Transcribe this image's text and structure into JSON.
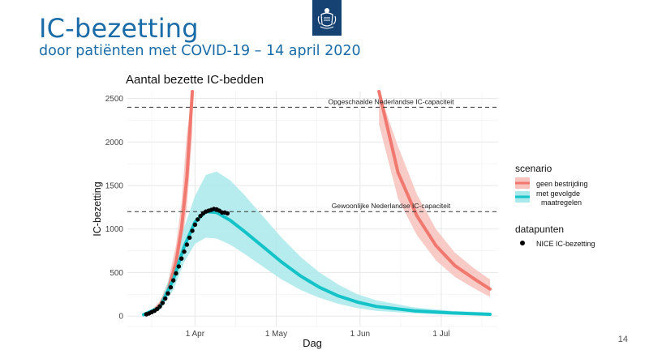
{
  "slide": {
    "title": "IC-bezetting",
    "subtitle": "door patiënten met COVID-19 – 14 april 2020",
    "page_number": "14"
  },
  "colors": {
    "title_blue": "#1a6ca8",
    "logo_blue": "#154273",
    "red_line": "#f0786e",
    "red_band": "#f8c2bd",
    "teal_line": "#14c3c8",
    "teal_band": "#a9e9eb",
    "grid": "#e6e6e6"
  },
  "chart_data": {
    "type": "line",
    "title": "Aantal bezette IC-bedden",
    "xlabel": "Dag",
    "ylabel": "IC-bezetting",
    "xlim": [
      "2020-03-07",
      "2020-07-22"
    ],
    "ylim": [
      -120,
      2580
    ],
    "x_ticks": [
      {
        "date": "2020-04-01",
        "label": "1 Apr"
      },
      {
        "date": "2020-05-01",
        "label": "1 May"
      },
      {
        "date": "2020-06-01",
        "label": "1 Jun"
      },
      {
        "date": "2020-07-01",
        "label": "1 Jul"
      }
    ],
    "y_ticks": [
      0,
      500,
      1000,
      1500,
      2000,
      2500
    ],
    "grid": true,
    "reference_lines": [
      {
        "y": 2400,
        "label": "Opgeschaalde Nederlandse IC-capaciteit"
      },
      {
        "y": 1200,
        "label": "Gewoonlijke Nederlandse IC-capaciteit"
      }
    ],
    "legend": {
      "position": "right",
      "scenario_title": "scenario",
      "datapunten_title": "datapunten",
      "items": [
        {
          "label": "geen bestrijding",
          "color": "#f0786e"
        },
        {
          "label": "met gevolgde maatregelen",
          "line1": "met gevolgde",
          "line2": "maatregelen",
          "color": "#14c3c8"
        },
        {
          "label": "NICE IC-bezetting",
          "color": "#000000"
        }
      ]
    },
    "series": [
      {
        "name": "geen bestrijding",
        "segments": [
          {
            "x": [
              "2020-03-13",
              "2020-03-16",
              "2020-03-19",
              "2020-03-22",
              "2020-03-25",
              "2020-03-27",
              "2020-03-29",
              "2020-03-31"
            ],
            "y": [
              15,
              45,
              120,
              290,
              620,
              1000,
              1600,
              2580
            ],
            "lower": [
              10,
              30,
              80,
              210,
              470,
              780,
              1250,
              2100
            ],
            "upper": [
              22,
              70,
              170,
              390,
              820,
              1300,
              2100,
              2580
            ]
          },
          {
            "x": [
              "2020-06-08",
              "2020-06-15",
              "2020-06-22",
              "2020-06-29",
              "2020-07-06",
              "2020-07-13",
              "2020-07-19"
            ],
            "y": [
              2580,
              1650,
              1150,
              810,
              580,
              430,
              310
            ],
            "lower": [
              2200,
              1350,
              930,
              640,
              450,
              320,
              220
            ],
            "upper": [
              2580,
              1950,
              1400,
              1000,
              730,
              550,
              420
            ]
          }
        ]
      },
      {
        "name": "met gevolgde maatregelen",
        "x": [
          "2020-03-13",
          "2020-03-19",
          "2020-03-24",
          "2020-03-28",
          "2020-04-01",
          "2020-04-05",
          "2020-04-09",
          "2020-04-14",
          "2020-04-19",
          "2020-04-26",
          "2020-05-03",
          "2020-05-10",
          "2020-05-17",
          "2020-05-24",
          "2020-05-31",
          "2020-06-07",
          "2020-06-21",
          "2020-07-05",
          "2020-07-19"
        ],
        "y": [
          15,
          100,
          420,
          800,
          1080,
          1200,
          1190,
          1100,
          980,
          800,
          620,
          460,
          330,
          230,
          160,
          110,
          60,
          35,
          20
        ],
        "lower": [
          10,
          70,
          300,
          620,
          830,
          900,
          890,
          820,
          720,
          570,
          420,
          300,
          210,
          140,
          90,
          60,
          30,
          15,
          8
        ],
        "upper": [
          22,
          140,
          560,
          1020,
          1380,
          1620,
          1660,
          1560,
          1400,
          1150,
          900,
          680,
          500,
          360,
          250,
          180,
          100,
          60,
          40
        ]
      },
      {
        "name": "NICE IC-bezetting",
        "kind": "points",
        "x": [
          "2020-03-14",
          "2020-03-15",
          "2020-03-16",
          "2020-03-17",
          "2020-03-18",
          "2020-03-19",
          "2020-03-20",
          "2020-03-21",
          "2020-03-22",
          "2020-03-23",
          "2020-03-24",
          "2020-03-25",
          "2020-03-26",
          "2020-03-27",
          "2020-03-28",
          "2020-03-29",
          "2020-03-30",
          "2020-03-31",
          "2020-04-01",
          "2020-04-02",
          "2020-04-03",
          "2020-04-04",
          "2020-04-05",
          "2020-04-06",
          "2020-04-07",
          "2020-04-08",
          "2020-04-09",
          "2020-04-10",
          "2020-04-11",
          "2020-04-12",
          "2020-04-13"
        ],
        "y": [
          20,
          30,
          45,
          60,
          80,
          110,
          150,
          200,
          260,
          330,
          410,
          490,
          570,
          660,
          740,
          820,
          900,
          980,
          1050,
          1110,
          1150,
          1180,
          1200,
          1210,
          1220,
          1230,
          1225,
          1210,
          1190,
          1190,
          1180
        ]
      }
    ]
  }
}
